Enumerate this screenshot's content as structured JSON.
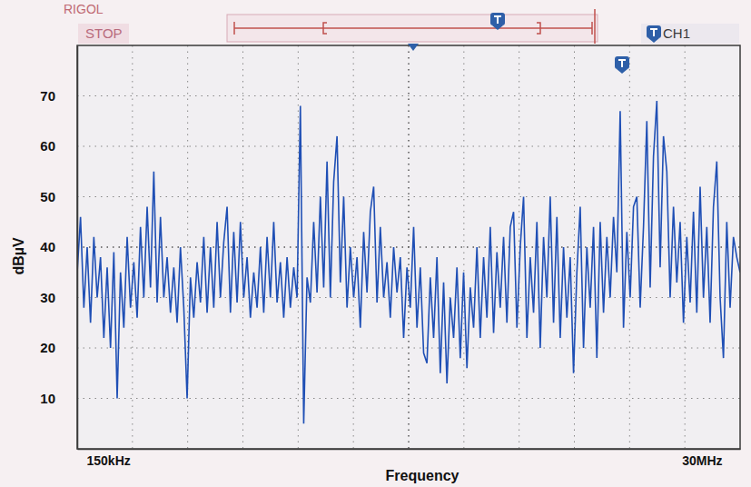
{
  "chart_data": {
    "type": "line",
    "x_label": "Frequency",
    "y_label": "dBµV",
    "annotations": [
      "RIGOL",
      "STOP",
      "CH1"
    ],
    "color": "#1f4fb5",
    "grid": true,
    "xlim": [
      0.15,
      30
    ],
    "xticks": [
      {
        "value": 0.15,
        "label": "150kHz"
      },
      {
        "value": 30,
        "label": "30MHz"
      }
    ],
    "ylim": [
      0,
      80
    ],
    "yticks": [
      10,
      20,
      30,
      40,
      50,
      60,
      70
    ],
    "x": [
      0.15,
      0.3,
      0.45,
      0.6,
      0.75,
      0.9,
      1.05,
      1.2,
      1.35,
      1.5,
      1.65,
      1.8,
      1.95,
      2.1,
      2.25,
      2.4,
      2.55,
      2.7,
      2.85,
      3,
      3.15,
      3.3,
      3.45,
      3.6,
      3.75,
      3.9,
      4.05,
      4.2,
      4.35,
      4.5,
      4.65,
      4.8,
      4.95,
      5.1,
      5.25,
      5.4,
      5.55,
      5.7,
      5.85,
      6,
      6.15,
      6.3,
      6.45,
      6.6,
      6.75,
      6.9,
      7.05,
      7.2,
      7.35,
      7.5,
      7.65,
      7.8,
      7.95,
      8.1,
      8.25,
      8.4,
      8.55,
      8.7,
      8.85,
      9,
      9.15,
      9.3,
      9.45,
      9.6,
      9.75,
      9.9,
      10.05,
      10.2,
      10.35,
      10.5,
      10.65,
      10.8,
      10.95,
      11.1,
      11.25,
      11.4,
      11.55,
      11.7,
      11.85,
      12,
      12.15,
      12.3,
      12.45,
      12.6,
      12.75,
      12.9,
      13.05,
      13.2,
      13.35,
      13.5,
      13.65,
      13.8,
      13.95,
      14.1,
      14.25,
      14.4,
      14.55,
      14.7,
      14.85,
      15,
      15.15,
      15.3,
      15.45,
      15.6,
      15.75,
      15.9,
      16.05,
      16.2,
      16.35,
      16.5,
      16.65,
      16.8,
      16.95,
      17.1,
      17.25,
      17.4,
      17.55,
      17.7,
      17.85,
      18,
      18.15,
      18.3,
      18.45,
      18.6,
      18.75,
      18.9,
      19.05,
      19.2,
      19.35,
      19.5,
      19.65,
      19.8,
      19.95,
      20.1,
      20.25,
      20.4,
      20.55,
      20.7,
      20.85,
      21,
      21.15,
      21.3,
      21.45,
      21.6,
      21.75,
      21.9,
      22.05,
      22.2,
      22.35,
      22.5,
      22.65,
      22.8,
      22.95,
      23.1,
      23.25,
      23.4,
      23.55,
      23.7,
      23.85,
      24,
      24.15,
      24.3,
      24.45,
      24.6,
      24.75,
      24.9,
      25.05,
      25.2,
      25.35,
      25.5,
      25.65,
      25.8,
      25.95,
      26.1,
      26.25,
      26.4,
      26.55,
      26.7,
      26.85,
      27,
      27.15,
      27.3,
      27.45,
      27.6,
      27.75,
      27.9,
      28.05,
      28.2,
      28.35,
      28.5,
      28.65,
      28.8,
      28.95,
      29.1,
      29.25,
      29.4,
      29.55,
      29.7,
      29.85,
      30
    ],
    "values": [
      35,
      46,
      28,
      40,
      25,
      42,
      30,
      38,
      22,
      36,
      20,
      39,
      10,
      35,
      24,
      42,
      28,
      37,
      26,
      44,
      30,
      48,
      32,
      55,
      29,
      46,
      30,
      38,
      27,
      36,
      25,
      40,
      28,
      10,
      34,
      26,
      37,
      29,
      42,
      27,
      40,
      28,
      45,
      30,
      41,
      48,
      27,
      43,
      29,
      45,
      30,
      38,
      26,
      35,
      28,
      40,
      27,
      42,
      30,
      45,
      29,
      37,
      26,
      38,
      28,
      36,
      30,
      68,
      5,
      34,
      29,
      45,
      31,
      50,
      32,
      57,
      30,
      53,
      62,
      33,
      50,
      28,
      40,
      30,
      38,
      24,
      43,
      31,
      47,
      52,
      29,
      44,
      30,
      37,
      26,
      40,
      31,
      38,
      22,
      36,
      28,
      44,
      24,
      36,
      19,
      17,
      34,
      22,
      38,
      15,
      33,
      13,
      30,
      22,
      36,
      18,
      35,
      16,
      32,
      24,
      40,
      22,
      38,
      26,
      44,
      23,
      39,
      28,
      42,
      25,
      44,
      47,
      24,
      40,
      50,
      22,
      38,
      27,
      45,
      20,
      42,
      30,
      50,
      25,
      46,
      22,
      40,
      26,
      38,
      15,
      35,
      48,
      20,
      40,
      28,
      44,
      18,
      45,
      27,
      42,
      30,
      46,
      35,
      67,
      24,
      43,
      30,
      48,
      50,
      28,
      44,
      65,
      32,
      58,
      69,
      36,
      62,
      55,
      30,
      48,
      33,
      45,
      25,
      42,
      29,
      47,
      27,
      52,
      30,
      44,
      25,
      48,
      57,
      30,
      18,
      45,
      28,
      42,
      38,
      35
    ]
  }
}
